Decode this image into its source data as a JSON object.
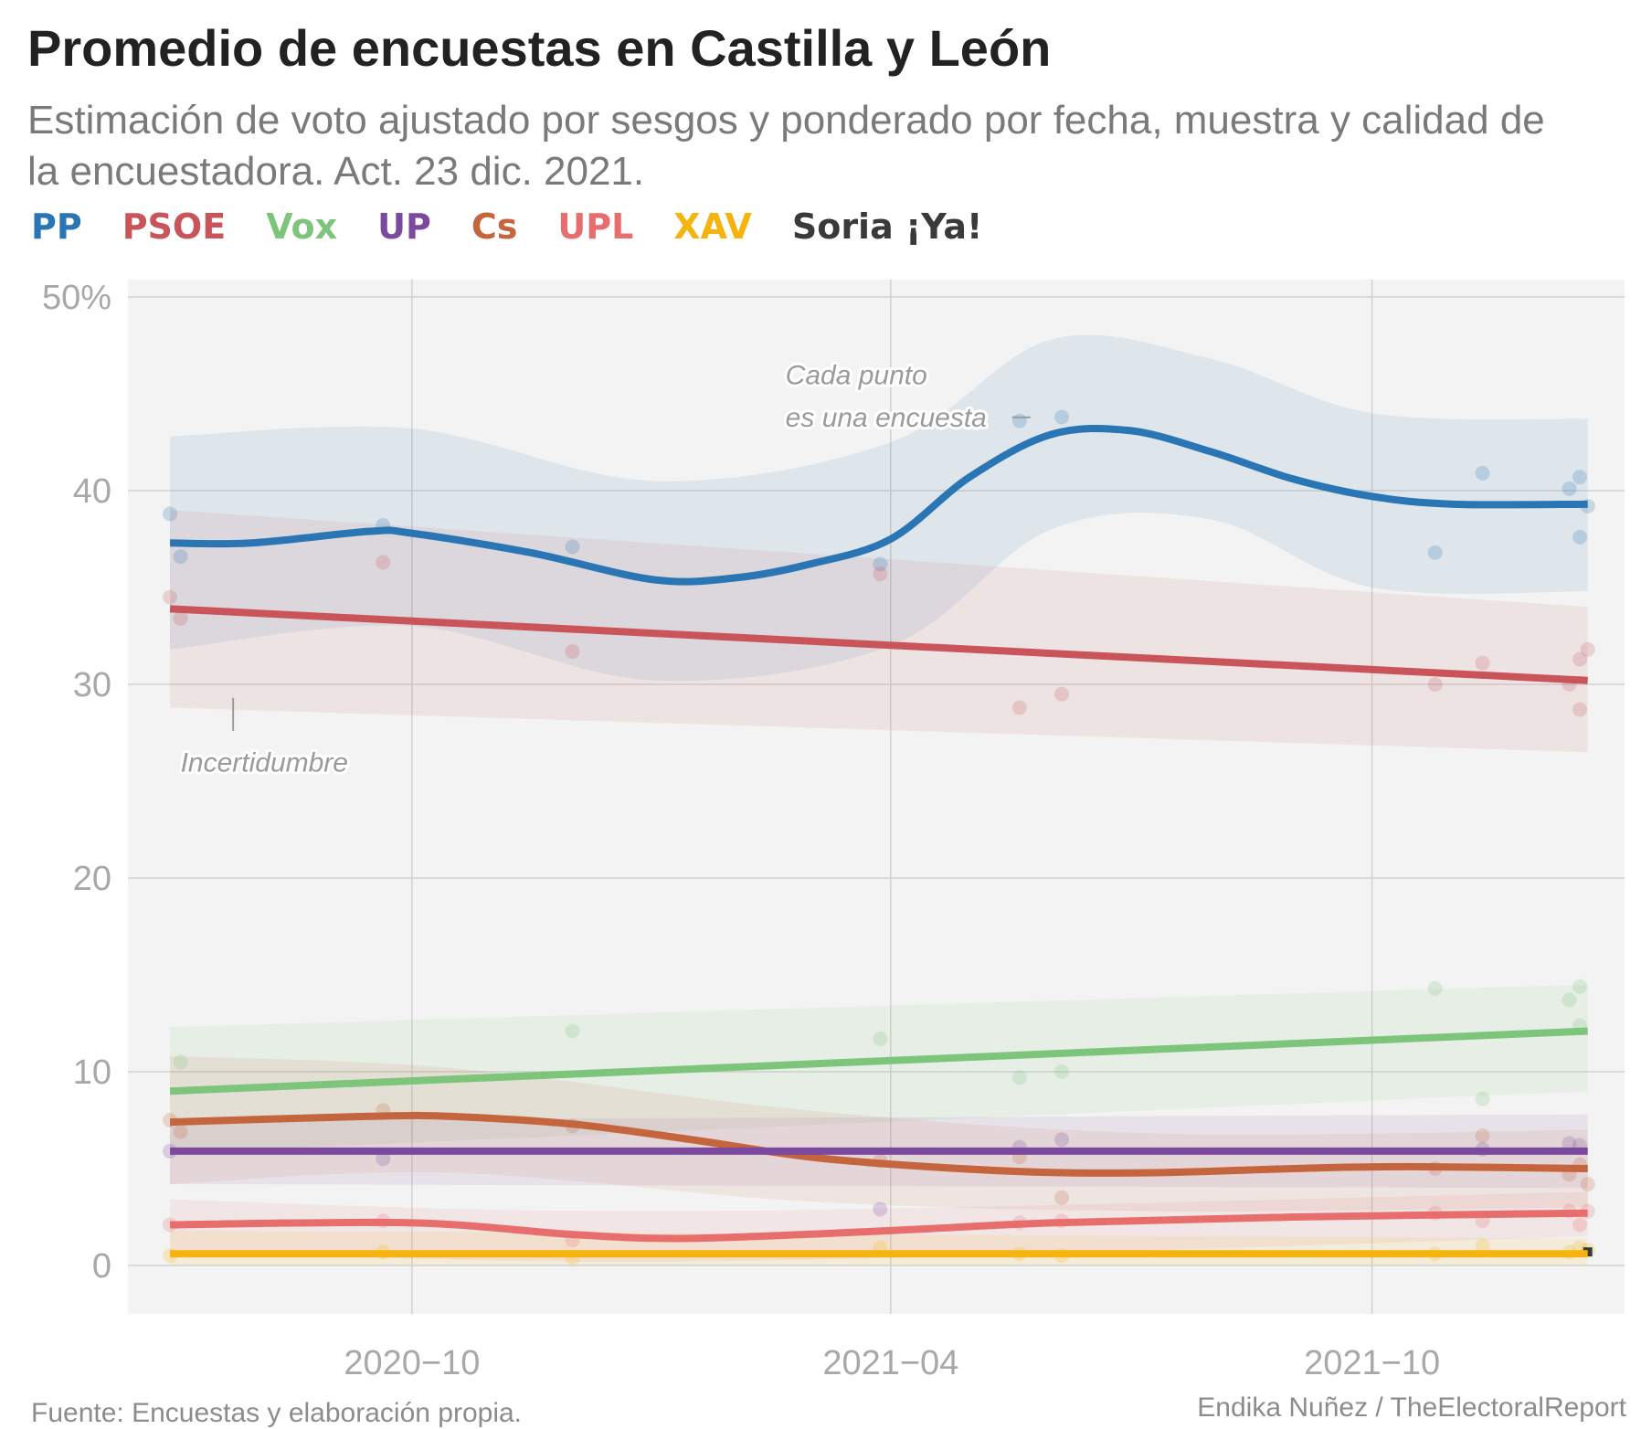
{
  "header": {
    "title": "Promedio de encuestas en Castilla y León",
    "subtitle": "Estimación de voto ajustado por sesgos y ponderado por fecha, muestra y calidad de la encuestadora. Act. 23 dic. 2021."
  },
  "footer": {
    "source": "Fuente: Encuestas y elaboración propia.",
    "credit": "Endika Nuñez / TheElectoralReport"
  },
  "colors": {
    "PP": "#2a75b3",
    "PSOE": "#c9555a",
    "Vox": "#7dc57a",
    "UP": "#7b4a9e",
    "Cs": "#c4653e",
    "UPL": "#e86e6e",
    "XAV": "#f5b40d",
    "Soria": "#3a3a3a",
    "panel": "#f3f3f3",
    "grid": "#d2d2d2"
  },
  "chart_data": {
    "type": "line",
    "title": "Promedio de encuestas en Castilla y León",
    "xlabel": "",
    "ylabel": "",
    "ylim": [
      0,
      50
    ],
    "y_ticks": [
      {
        "value": 0,
        "label": "0"
      },
      {
        "value": 10,
        "label": "10"
      },
      {
        "value": 20,
        "label": "20"
      },
      {
        "value": 30,
        "label": "30"
      },
      {
        "value": 40,
        "label": "40"
      },
      {
        "value": 50,
        "label": "50%"
      }
    ],
    "x_range": [
      "2020-06-15",
      "2022-01-05"
    ],
    "x_ticks": [
      {
        "date": "2020-10-01",
        "label": "2020−10"
      },
      {
        "date": "2021-04-01",
        "label": "2021−04"
      },
      {
        "date": "2021-10-01",
        "label": "2021−10"
      }
    ],
    "grid": true,
    "legend": "top-left",
    "annotations": [
      {
        "text": "Cada punto",
        "date": "2021-02-20",
        "y": 45.5
      },
      {
        "text": "es una encuesta",
        "date": "2021-02-20",
        "y": 43.5
      },
      {
        "text": "Incertidumbre",
        "date": "2020-07-05",
        "y": 25.5
      }
    ],
    "series": [
      {
        "name": "PP",
        "color": "#2a75b3",
        "line": [
          {
            "x": "2020-07-01",
            "y": 37.3
          },
          {
            "x": "2020-08-01",
            "y": 37.3
          },
          {
            "x": "2020-09-15",
            "y": 37.9
          },
          {
            "x": "2020-10-01",
            "y": 37.8
          },
          {
            "x": "2020-11-15",
            "y": 36.8
          },
          {
            "x": "2021-01-01",
            "y": 35.4
          },
          {
            "x": "2021-02-01",
            "y": 35.5
          },
          {
            "x": "2021-03-01",
            "y": 36.2
          },
          {
            "x": "2021-04-01",
            "y": 37.5
          },
          {
            "x": "2021-05-01",
            "y": 40.7
          },
          {
            "x": "2021-06-01",
            "y": 42.9
          },
          {
            "x": "2021-07-01",
            "y": 43.1
          },
          {
            "x": "2021-08-01",
            "y": 42.0
          },
          {
            "x": "2021-09-01",
            "y": 40.6
          },
          {
            "x": "2021-10-01",
            "y": 39.7
          },
          {
            "x": "2021-11-01",
            "y": 39.3
          },
          {
            "x": "2021-12-22",
            "y": 39.3
          }
        ],
        "band_upper": [
          {
            "x": "2020-07-01",
            "y": 42.8
          },
          {
            "x": "2020-10-01",
            "y": 43.2
          },
          {
            "x": "2021-01-01",
            "y": 40.5
          },
          {
            "x": "2021-04-01",
            "y": 42.5
          },
          {
            "x": "2021-06-01",
            "y": 47.8
          },
          {
            "x": "2021-08-01",
            "y": 46.8
          },
          {
            "x": "2021-10-01",
            "y": 44.0
          },
          {
            "x": "2021-12-22",
            "y": 43.7
          }
        ],
        "band_lower": [
          {
            "x": "2020-07-01",
            "y": 31.8
          },
          {
            "x": "2020-10-01",
            "y": 33.0
          },
          {
            "x": "2021-01-01",
            "y": 30.2
          },
          {
            "x": "2021-04-01",
            "y": 32.0
          },
          {
            "x": "2021-06-01",
            "y": 38.0
          },
          {
            "x": "2021-08-01",
            "y": 38.5
          },
          {
            "x": "2021-10-01",
            "y": 35.0
          },
          {
            "x": "2021-12-22",
            "y": 34.8
          }
        ],
        "polls": [
          {
            "x": "2020-07-01",
            "y": 38.8
          },
          {
            "x": "2020-07-05",
            "y": 36.6
          },
          {
            "x": "2020-09-20",
            "y": 38.2
          },
          {
            "x": "2020-12-01",
            "y": 37.1
          },
          {
            "x": "2021-03-28",
            "y": 36.2
          },
          {
            "x": "2021-05-20",
            "y": 43.6
          },
          {
            "x": "2021-06-05",
            "y": 43.8
          },
          {
            "x": "2021-10-25",
            "y": 36.8
          },
          {
            "x": "2021-11-12",
            "y": 40.9
          },
          {
            "x": "2021-12-15",
            "y": 40.1
          },
          {
            "x": "2021-12-19",
            "y": 40.7
          },
          {
            "x": "2021-12-19",
            "y": 37.6
          },
          {
            "x": "2021-12-22",
            "y": 39.2
          }
        ]
      },
      {
        "name": "PSOE",
        "color": "#c9555a",
        "line": [
          {
            "x": "2020-07-01",
            "y": 33.9
          },
          {
            "x": "2021-12-22",
            "y": 30.2
          }
        ],
        "band_upper": [
          {
            "x": "2020-07-01",
            "y": 39.0
          },
          {
            "x": "2021-12-22",
            "y": 34.0
          }
        ],
        "band_lower": [
          {
            "x": "2020-07-01",
            "y": 28.8
          },
          {
            "x": "2021-12-22",
            "y": 26.5
          }
        ],
        "polls": [
          {
            "x": "2020-07-01",
            "y": 34.5
          },
          {
            "x": "2020-07-05",
            "y": 33.4
          },
          {
            "x": "2020-09-20",
            "y": 36.3
          },
          {
            "x": "2020-12-01",
            "y": 31.7
          },
          {
            "x": "2021-03-28",
            "y": 35.7
          },
          {
            "x": "2021-05-20",
            "y": 28.8
          },
          {
            "x": "2021-06-05",
            "y": 29.5
          },
          {
            "x": "2021-10-25",
            "y": 30.0
          },
          {
            "x": "2021-11-12",
            "y": 31.1
          },
          {
            "x": "2021-12-15",
            "y": 30.0
          },
          {
            "x": "2021-12-19",
            "y": 31.3
          },
          {
            "x": "2021-12-19",
            "y": 28.7
          },
          {
            "x": "2021-12-22",
            "y": 31.8
          }
        ]
      },
      {
        "name": "Vox",
        "color": "#7dc57a",
        "line": [
          {
            "x": "2020-07-01",
            "y": 9.0
          },
          {
            "x": "2021-12-22",
            "y": 12.1
          }
        ],
        "band_upper": [
          {
            "x": "2020-07-01",
            "y": 12.3
          },
          {
            "x": "2021-12-22",
            "y": 14.5
          }
        ],
        "band_lower": [
          {
            "x": "2020-07-01",
            "y": 5.8
          },
          {
            "x": "2021-12-22",
            "y": 9.0
          }
        ],
        "polls": [
          {
            "x": "2020-07-05",
            "y": 10.5
          },
          {
            "x": "2020-12-01",
            "y": 12.1
          },
          {
            "x": "2021-03-28",
            "y": 11.7
          },
          {
            "x": "2021-05-20",
            "y": 9.7
          },
          {
            "x": "2021-06-05",
            "y": 10.0
          },
          {
            "x": "2021-10-25",
            "y": 14.3
          },
          {
            "x": "2021-11-12",
            "y": 8.6
          },
          {
            "x": "2021-12-15",
            "y": 13.7
          },
          {
            "x": "2021-12-19",
            "y": 14.4
          },
          {
            "x": "2021-12-19",
            "y": 12.4
          }
        ]
      },
      {
        "name": "UP",
        "color": "#7b4a9e",
        "line": [
          {
            "x": "2020-07-01",
            "y": 5.9
          },
          {
            "x": "2021-12-22",
            "y": 5.9
          }
        ],
        "band_upper": [
          {
            "x": "2020-07-01",
            "y": 7.5
          },
          {
            "x": "2021-12-22",
            "y": 7.8
          }
        ],
        "band_lower": [
          {
            "x": "2020-07-01",
            "y": 4.2
          },
          {
            "x": "2021-12-22",
            "y": 4.0
          }
        ],
        "polls": [
          {
            "x": "2020-07-01",
            "y": 5.9
          },
          {
            "x": "2020-09-20",
            "y": 5.5
          },
          {
            "x": "2021-03-28",
            "y": 2.9
          },
          {
            "x": "2021-05-20",
            "y": 6.1
          },
          {
            "x": "2021-06-05",
            "y": 6.5
          },
          {
            "x": "2021-11-12",
            "y": 6.0
          },
          {
            "x": "2021-12-15",
            "y": 6.3
          },
          {
            "x": "2021-12-19",
            "y": 6.2
          }
        ]
      },
      {
        "name": "Cs",
        "color": "#c4653e",
        "line": [
          {
            "x": "2020-07-01",
            "y": 7.4
          },
          {
            "x": "2020-09-15",
            "y": 7.7
          },
          {
            "x": "2020-10-15",
            "y": 7.7
          },
          {
            "x": "2020-12-01",
            "y": 7.3
          },
          {
            "x": "2021-01-15",
            "y": 6.5
          },
          {
            "x": "2021-03-01",
            "y": 5.6
          },
          {
            "x": "2021-04-15",
            "y": 5.1
          },
          {
            "x": "2021-06-01",
            "y": 4.8
          },
          {
            "x": "2021-07-15",
            "y": 4.8
          },
          {
            "x": "2021-09-01",
            "y": 5.0
          },
          {
            "x": "2021-10-15",
            "y": 5.1
          },
          {
            "x": "2021-12-22",
            "y": 5.0
          }
        ],
        "band_upper": [
          {
            "x": "2020-07-01",
            "y": 10.8
          },
          {
            "x": "2020-10-15",
            "y": 10.2
          },
          {
            "x": "2021-03-01",
            "y": 8.0
          },
          {
            "x": "2021-07-15",
            "y": 6.8
          },
          {
            "x": "2021-12-22",
            "y": 7.0
          }
        ],
        "band_lower": [
          {
            "x": "2020-07-01",
            "y": 4.2
          },
          {
            "x": "2020-10-15",
            "y": 4.8
          },
          {
            "x": "2021-03-01",
            "y": 3.3
          },
          {
            "x": "2021-07-15",
            "y": 2.8
          },
          {
            "x": "2021-12-22",
            "y": 3.0
          }
        ],
        "polls": [
          {
            "x": "2020-07-01",
            "y": 7.5
          },
          {
            "x": "2020-07-05",
            "y": 6.9
          },
          {
            "x": "2020-09-20",
            "y": 8.0
          },
          {
            "x": "2020-12-01",
            "y": 7.2
          },
          {
            "x": "2021-03-28",
            "y": 5.4
          },
          {
            "x": "2021-05-20",
            "y": 5.6
          },
          {
            "x": "2021-06-05",
            "y": 3.5
          },
          {
            "x": "2021-10-25",
            "y": 5.0
          },
          {
            "x": "2021-11-12",
            "y": 6.7
          },
          {
            "x": "2021-12-15",
            "y": 4.7
          },
          {
            "x": "2021-12-19",
            "y": 5.2
          },
          {
            "x": "2021-12-22",
            "y": 4.2
          }
        ]
      },
      {
        "name": "UPL",
        "color": "#e86e6e",
        "line": [
          {
            "x": "2020-07-01",
            "y": 2.1
          },
          {
            "x": "2020-10-01",
            "y": 2.2
          },
          {
            "x": "2020-12-01",
            "y": 1.6
          },
          {
            "x": "2021-01-15",
            "y": 1.4
          },
          {
            "x": "2021-04-01",
            "y": 1.8
          },
          {
            "x": "2021-06-01",
            "y": 2.2
          },
          {
            "x": "2021-09-01",
            "y": 2.5
          },
          {
            "x": "2021-12-22",
            "y": 2.7
          }
        ],
        "band_upper": [
          {
            "x": "2020-07-01",
            "y": 3.4
          },
          {
            "x": "2021-01-15",
            "y": 2.8
          },
          {
            "x": "2021-12-22",
            "y": 3.8
          }
        ],
        "band_lower": [
          {
            "x": "2020-07-01",
            "y": 0.8
          },
          {
            "x": "2021-01-15",
            "y": 0.2
          },
          {
            "x": "2021-12-22",
            "y": 1.5
          }
        ],
        "polls": [
          {
            "x": "2020-07-01",
            "y": 2.1
          },
          {
            "x": "2020-09-20",
            "y": 2.3
          },
          {
            "x": "2020-12-01",
            "y": 1.3
          },
          {
            "x": "2021-05-20",
            "y": 2.2
          },
          {
            "x": "2021-06-05",
            "y": 2.3
          },
          {
            "x": "2021-10-25",
            "y": 2.7
          },
          {
            "x": "2021-11-12",
            "y": 2.3
          },
          {
            "x": "2021-12-15",
            "y": 2.8
          },
          {
            "x": "2021-12-19",
            "y": 2.1
          },
          {
            "x": "2021-12-22",
            "y": 2.8
          }
        ]
      },
      {
        "name": "XAV",
        "color": "#f5b40d",
        "line": [
          {
            "x": "2020-07-01",
            "y": 0.6
          },
          {
            "x": "2021-12-22",
            "y": 0.6
          }
        ],
        "band_upper": [
          {
            "x": "2020-07-01",
            "y": 1.8
          },
          {
            "x": "2021-12-22",
            "y": 1.4
          }
        ],
        "band_lower": [
          {
            "x": "2020-07-01",
            "y": 0.0
          },
          {
            "x": "2021-12-22",
            "y": 0.0
          }
        ],
        "polls": [
          {
            "x": "2020-07-01",
            "y": 0.5
          },
          {
            "x": "2020-09-20",
            "y": 0.7
          },
          {
            "x": "2020-12-01",
            "y": 0.4
          },
          {
            "x": "2021-03-28",
            "y": 0.9
          },
          {
            "x": "2021-05-20",
            "y": 0.6
          },
          {
            "x": "2021-06-05",
            "y": 0.5
          },
          {
            "x": "2021-10-25",
            "y": 0.6
          },
          {
            "x": "2021-11-12",
            "y": 1.0
          },
          {
            "x": "2021-12-15",
            "y": 0.7
          },
          {
            "x": "2021-12-19",
            "y": 0.9
          },
          {
            "x": "2021-12-22",
            "y": 0.8
          }
        ]
      },
      {
        "name": "Soria ¡Ya!",
        "color": "#3a3a3a",
        "line": [],
        "band_upper": [],
        "band_lower": [],
        "polls": [
          {
            "x": "2021-12-22",
            "y": 0.7
          }
        ]
      }
    ]
  }
}
